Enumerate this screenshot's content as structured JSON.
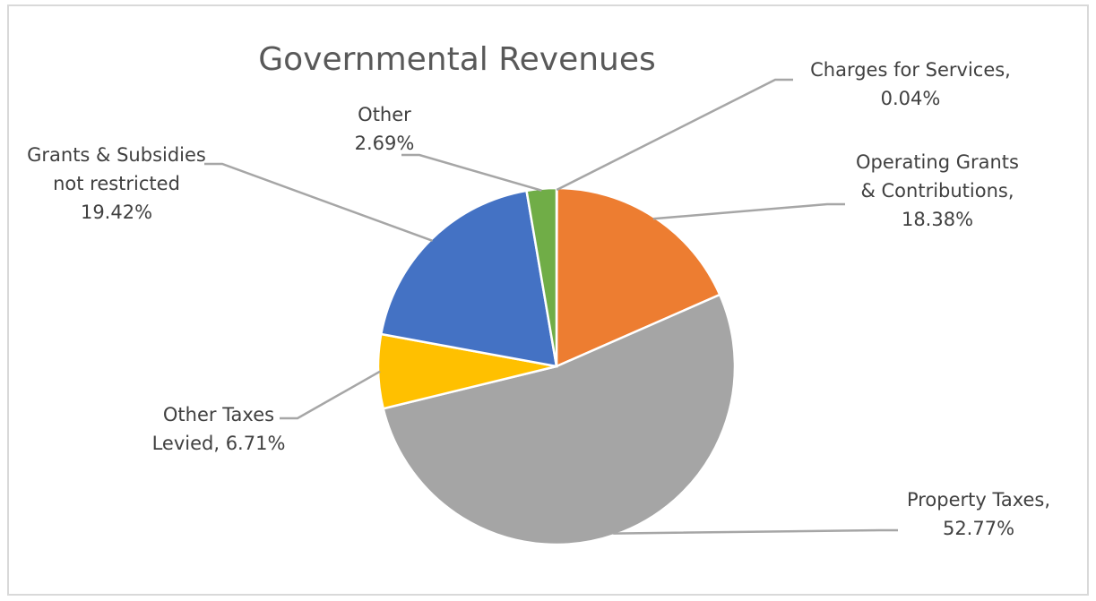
{
  "chart_data": {
    "type": "pie",
    "title": "Governmental Revenues",
    "slices": [
      {
        "name": "Charges for Services",
        "value": 0.04,
        "label_lines": [
          "Charges for Services,",
          "0.04%"
        ],
        "color": "#5B9BD5"
      },
      {
        "name": "Operating Grants & Contributions",
        "value": 18.38,
        "label_lines": [
          "Operating Grants",
          "& Contributions,",
          "18.38%"
        ],
        "color": "#ED7D31"
      },
      {
        "name": "Property Taxes",
        "value": 52.77,
        "label_lines": [
          "Property Taxes,",
          "52.77%"
        ],
        "color": "#A5A5A5"
      },
      {
        "name": "Other Taxes Levied",
        "value": 6.71,
        "label_lines": [
          "Other Taxes",
          "Levied, 6.71%"
        ],
        "color": "#FFC000"
      },
      {
        "name": "Grants & Subsidies not restricted",
        "value": 19.42,
        "label_lines": [
          "Grants & Subsidies",
          "not restricted",
          "19.42%"
        ],
        "color": "#4472C4"
      },
      {
        "name": "Other",
        "value": 2.69,
        "label_lines": [
          "Other",
          "2.69%"
        ],
        "color": "#70AD47"
      }
    ],
    "start_angle_deg": 0,
    "direction": "clockwise",
    "legend": "none",
    "data_labels": "outside-with-leader-lines"
  }
}
